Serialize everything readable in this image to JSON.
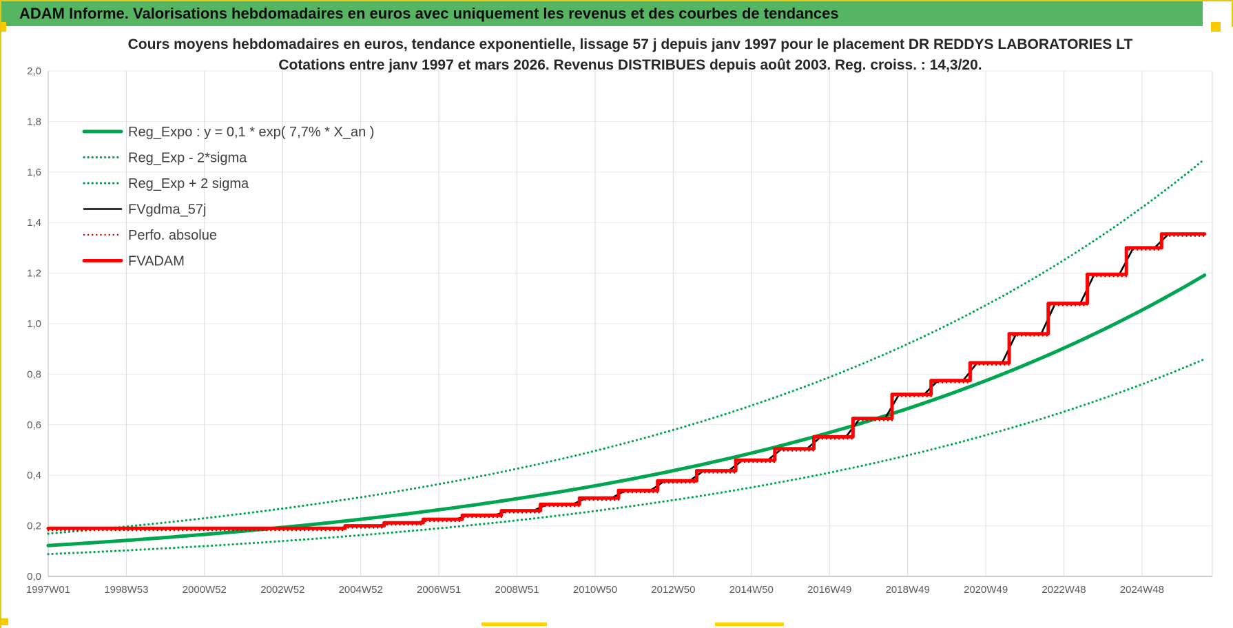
{
  "header": {
    "title": "ADAM Informe. Valorisations hebdomadaires en euros avec uniquement les revenus et des courbes de tendances"
  },
  "chart_data": {
    "type": "line",
    "title_lines": [
      "Cours moyens hebdomadaires en euros, tendance exponentielle, lissage 57 j depuis janv 1997 pour le placement DR REDDYS LABORATORIES LT",
      "Cotations entre janv 1997 et mars 2026. Revenus DISTRIBUES depuis août 2003. Reg. croiss. : 14,3/20."
    ],
    "x_axis": {
      "tick_labels": [
        "1997W01",
        "1998W53",
        "2000W52",
        "2002W52",
        "2004W52",
        "2006W51",
        "2008W51",
        "2010W50",
        "2012W50",
        "2014W50",
        "2016W49",
        "2018W49",
        "2020W49",
        "2022W48",
        "2024W48"
      ],
      "tick_positions_years": [
        0,
        2,
        4,
        6,
        8,
        10,
        12,
        14,
        16,
        18,
        20,
        22,
        24,
        26,
        28
      ],
      "range_years": [
        0,
        29.8
      ]
    },
    "y_axis": {
      "tick_labels": [
        "0,0",
        "0,2",
        "0,4",
        "0,6",
        "0,8",
        "1,0",
        "1,2",
        "1,4",
        "1,6",
        "1,8",
        "2,0"
      ],
      "tick_values": [
        0,
        0.2,
        0.4,
        0.6,
        0.8,
        1.0,
        1.2,
        1.4,
        1.6,
        1.8,
        2.0
      ],
      "range": [
        0,
        2
      ]
    },
    "series": [
      {
        "id": "reg_expo",
        "label": "Reg_Expo : y = 0,1 * exp( 7,7% *  X_an )",
        "kind": "exponential",
        "y0": 0.122,
        "rate": 0.077,
        "color": "#00A54F",
        "style": "solid",
        "width": 5
      },
      {
        "id": "reg_exp_minus",
        "label": "Reg_Exp - 2*sigma",
        "kind": "exponential",
        "y0": 0.088,
        "rate": 0.077,
        "color": "#00A54F",
        "style": "dotted",
        "width": 3.2
      },
      {
        "id": "reg_exp_plus",
        "label": "Reg_Exp + 2 sigma",
        "kind": "exponential",
        "y0": 0.169,
        "rate": 0.077,
        "color": "#00A54F",
        "style": "dotted",
        "width": 3.2
      },
      {
        "id": "fvgdma_57j",
        "label": "FVgdma_57j",
        "kind": "ramped_steps",
        "color": "#000000",
        "style": "solid",
        "width": 2.6
      },
      {
        "id": "perfo_absolue",
        "label": "Perfo. absolue",
        "kind": "steps",
        "color": "#C00000",
        "style": "dotted",
        "width": 2.4,
        "offset": -0.008
      },
      {
        "id": "fvadam",
        "label": "FVADAM",
        "kind": "steps",
        "color": "#FF0000",
        "style": "solid",
        "width": 5
      }
    ],
    "legend_order": [
      "reg_expo",
      "reg_exp_minus",
      "reg_exp_plus",
      "fvgdma_57j",
      "perfo_absolue",
      "fvadam"
    ],
    "steps": {
      "x_years": [
        0,
        7.6,
        8.6,
        9.6,
        10.6,
        11.6,
        12.6,
        13.6,
        14.6,
        15.6,
        16.6,
        17.6,
        18.6,
        19.6,
        20.6,
        21.6,
        22.6,
        23.6,
        24.6,
        25.6,
        26.6,
        27.6,
        28.5
      ],
      "values": [
        0.19,
        0.2,
        0.212,
        0.226,
        0.242,
        0.26,
        0.285,
        0.31,
        0.34,
        0.378,
        0.418,
        0.46,
        0.505,
        0.552,
        0.625,
        0.72,
        0.775,
        0.845,
        0.96,
        1.08,
        1.195,
        1.3,
        1.355
      ],
      "end_x": 29.6
    },
    "colors": {
      "green": "#00A54F",
      "red": "#FF0000",
      "dark_red": "#C00000",
      "black": "#000000",
      "header_green": "#55B562",
      "gold": "#F7CB00",
      "gridline": "#DCDCDC",
      "axis_text": "#595959"
    }
  }
}
